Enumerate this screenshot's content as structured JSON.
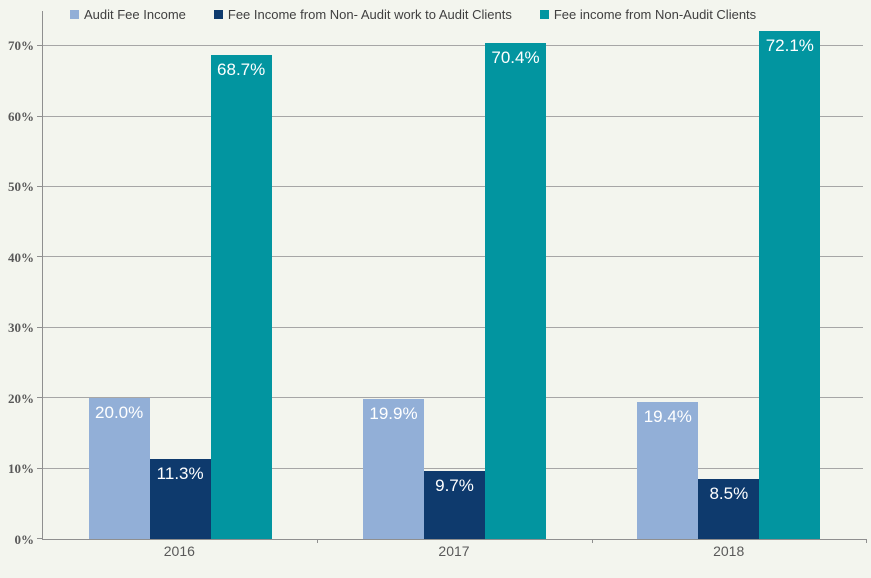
{
  "chart_data": {
    "type": "bar",
    "title": "",
    "categories": [
      "2016",
      "2017",
      "2018"
    ],
    "series": [
      {
        "name": "Audit Fee Income",
        "color": "#92afd7",
        "values": [
          20.0,
          19.9,
          19.4
        ],
        "labels": [
          "20.0%",
          "19.9%",
          "19.4%"
        ]
      },
      {
        "name": "Fee Income from Non- Audit work to Audit Clients",
        "color": "#0e3a6d",
        "values": [
          11.3,
          9.7,
          8.5
        ],
        "labels": [
          "11.3%",
          "9.7%",
          "8.5%"
        ]
      },
      {
        "name": "Fee income from Non-Audit Clients",
        "color": "#0295a0",
        "values": [
          68.7,
          70.4,
          72.1
        ],
        "labels": [
          "68.7%",
          "70.4%",
          "72.1%"
        ]
      }
    ],
    "ylim": [
      0,
      75
    ],
    "ytick_step": 10,
    "ytick_labels": [
      "0%",
      "10%",
      "20%",
      "30%",
      "40%",
      "50%",
      "60%",
      "70%"
    ],
    "grid": true,
    "legend_position": "top",
    "xlabel": "",
    "ylabel": "",
    "colors": {
      "background": "#f3f5ee",
      "gridline": "#a6a6a6",
      "axis": "#8f8f8f",
      "bar_label_text": "#ffffff",
      "tick_text": "#595959",
      "legend_text": "#404040"
    }
  }
}
